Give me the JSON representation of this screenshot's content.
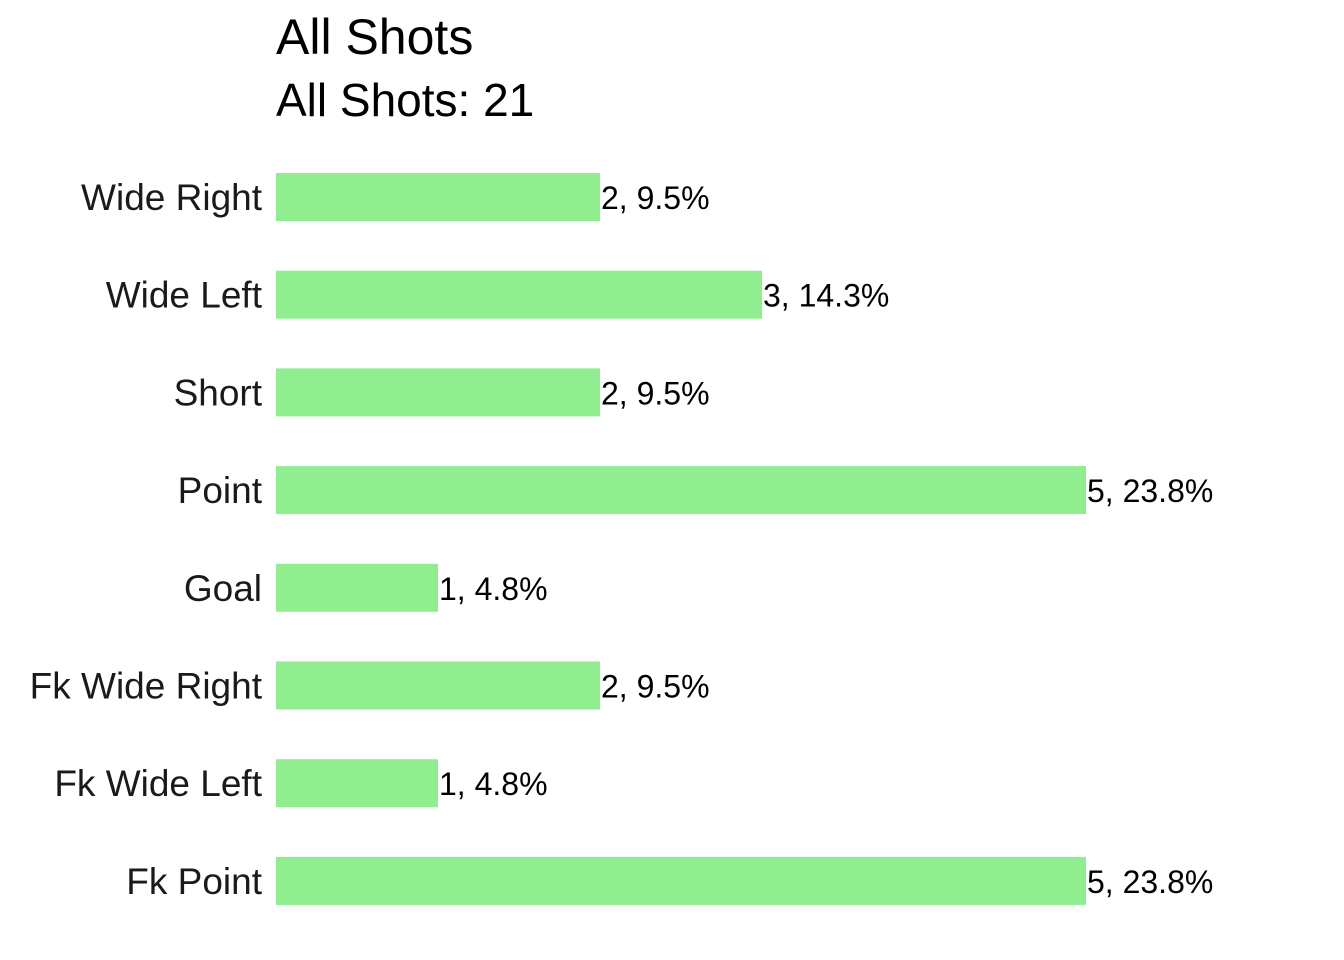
{
  "chart_data": {
    "type": "bar",
    "orientation": "horizontal",
    "title": "All Shots",
    "subtitle": "All Shots: 21",
    "xlabel": "",
    "ylabel": "",
    "categories": [
      "Wide Right",
      "Wide Left",
      "Short",
      "Point",
      "Goal",
      "Fk Wide Right",
      "Fk Wide Left",
      "Fk Point"
    ],
    "values": [
      2,
      3,
      2,
      5,
      1,
      2,
      1,
      5
    ],
    "data_labels": [
      "2, 9.5%",
      "3, 14.3%",
      "2, 9.5%",
      "5, 23.8%",
      "1, 4.8%",
      "2, 9.5%",
      "1, 4.8%",
      "5, 23.8%"
    ],
    "xlim": [
      0,
      5
    ],
    "grid": false,
    "legend": "none",
    "bar_color": "#90EE90"
  }
}
